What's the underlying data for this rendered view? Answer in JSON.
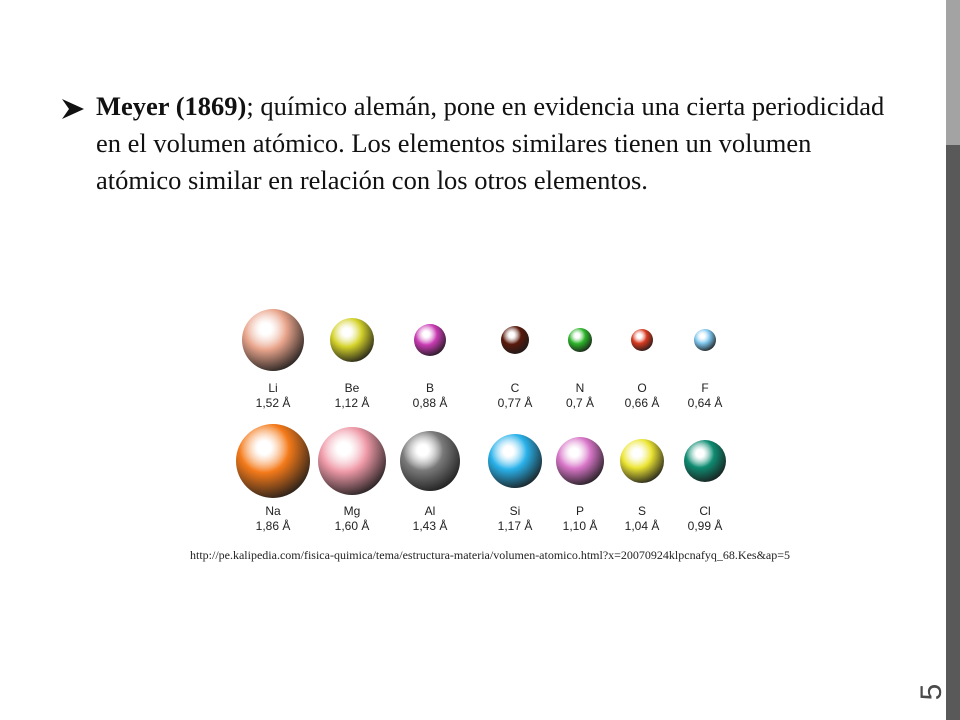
{
  "slide": {
    "heading_bold": "Meyer (1869)",
    "body_text": "; químico alemán, pone en evidencia una cierta periodicidad en el volumen atómico. Los elementos similares tienen un volumen atómico similar en relación con los otros elementos.",
    "page_number": "5",
    "source_url": "http://pe.kalipedia.com/fisica-quimica/tema/estructura-materia/volumen-atomico.html?x=20070924klpcnafyq_68.Kes&ap=5"
  },
  "atoms": {
    "row1": [
      {
        "symbol": "Li",
        "radius": "1,52 Å",
        "color": "#e9a58c"
      },
      {
        "symbol": "Be",
        "radius": "1,12 Å",
        "color": "#d4d22a"
      },
      {
        "symbol": "B",
        "radius": "0,88 Å",
        "color": "#c93bb4"
      },
      {
        "symbol": "C",
        "radius": "0,77 Å",
        "color": "#5a1a0c"
      },
      {
        "symbol": "N",
        "radius": "0,7 Å",
        "color": "#2db52a"
      },
      {
        "symbol": "O",
        "radius": "0,66 Å",
        "color": "#d83a20"
      },
      {
        "symbol": "F",
        "radius": "0,64 Å",
        "color": "#7ec6ee"
      }
    ],
    "row2": [
      {
        "symbol": "Na",
        "radius": "1,86 Å",
        "color": "#f47a1a"
      },
      {
        "symbol": "Mg",
        "radius": "1,60 Å",
        "color": "#ef9aa8"
      },
      {
        "symbol": "Al",
        "radius": "1,43 Å",
        "color": "#7a7a7a"
      },
      {
        "symbol": "Si",
        "radius": "1,17 Å",
        "color": "#2ab2ea"
      },
      {
        "symbol": "P",
        "radius": "1,10 Å",
        "color": "#d876c8"
      },
      {
        "symbol": "S",
        "radius": "1,04 Å",
        "color": "#ece534"
      },
      {
        "symbol": "Cl",
        "radius": "0,99 Å",
        "color": "#0f8c72"
      }
    ]
  }
}
